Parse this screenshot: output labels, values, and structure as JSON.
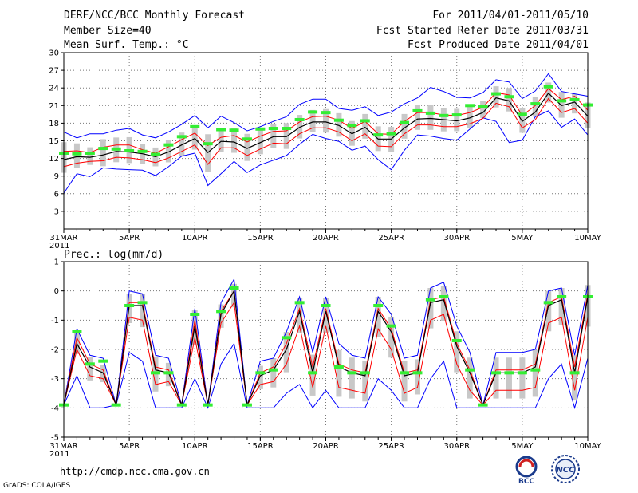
{
  "header": {
    "title": "DERF/NCC/BCC Monthly Forecast",
    "member_size": "Member Size=40",
    "variable": "Mean Surf. Temp.: °C",
    "period": "For 2011/04/01-2011/05/10",
    "started": "Fcst Started Refer Date 2011/03/31",
    "produced": "Fcst Produced Date 2011/04/01"
  },
  "footer": {
    "url": "http://cmdp.ncc.cma.gov.cn",
    "grads": "GrADS: COLA/IGES",
    "logo_bcc": "BCC",
    "logo_ncc": "NCC"
  },
  "colors": {
    "mean": "#000000",
    "spread": "#ff0000",
    "range": "#0000ff",
    "obs": "#33ee33",
    "box": "#c8c8c8"
  },
  "chart_data": [
    {
      "type": "line",
      "title": "Mean Surf. Temp.: °C",
      "x_tick_labels": [
        "31MAR",
        "5APR",
        "10APR",
        "15APR",
        "20APR",
        "25APR",
        "30APR",
        "5MAY",
        "10MAY"
      ],
      "x_tick_days": [
        0,
        5,
        10,
        15,
        20,
        25,
        30,
        35,
        40
      ],
      "x_year_label": "2011",
      "ylim": [
        0,
        30
      ],
      "y_ticks": [
        3,
        6,
        9,
        12,
        15,
        18,
        21,
        24,
        27,
        30
      ],
      "x": [
        0,
        1,
        2,
        3,
        4,
        5,
        6,
        7,
        8,
        9,
        10,
        11,
        12,
        13,
        14,
        15,
        16,
        17,
        18,
        19,
        20,
        21,
        22,
        23,
        24,
        25,
        26,
        27,
        28,
        29,
        30,
        31,
        32,
        33,
        34,
        35,
        36,
        37,
        38,
        39,
        40
      ],
      "series": [
        {
          "name": "ensemble mean",
          "values": [
            11.8,
            12.3,
            12.2,
            12.6,
            13.2,
            13.1,
            12.8,
            12.3,
            13.1,
            14.3,
            15.4,
            13.0,
            14.9,
            14.8,
            13.7,
            14.7,
            15.7,
            15.7,
            17.3,
            18.2,
            18.2,
            17.6,
            16.2,
            17.3,
            15.3,
            15.3,
            17.2,
            18.7,
            18.8,
            18.6,
            18.4,
            18.9,
            19.8,
            22.3,
            21.8,
            18.3,
            19.9,
            23.1,
            21.0,
            21.6,
            19.2
          ]
        },
        {
          "name": "mean + spread",
          "values": [
            13.2,
            13.3,
            13.0,
            13.9,
            14.3,
            14.3,
            13.5,
            12.9,
            14.0,
            15.2,
            16.3,
            14.2,
            15.6,
            15.9,
            14.8,
            15.8,
            16.6,
            16.7,
            18.2,
            19.1,
            19.2,
            18.5,
            17.1,
            18.3,
            16.2,
            16.1,
            18.3,
            19.8,
            19.8,
            19.4,
            19.3,
            19.8,
            20.7,
            23.2,
            22.8,
            19.3,
            21.0,
            23.9,
            22.0,
            22.6,
            20.2
          ]
        },
        {
          "name": "mean - spread",
          "values": [
            10.6,
            11.2,
            11.5,
            11.6,
            12.2,
            12.1,
            11.8,
            11.3,
            12.1,
            13.2,
            14.3,
            11.0,
            13.8,
            13.8,
            12.5,
            13.6,
            14.6,
            14.5,
            16.2,
            17.2,
            17.2,
            16.5,
            15.0,
            16.2,
            14.1,
            14.0,
            16.2,
            17.7,
            17.7,
            17.4,
            17.4,
            17.9,
            18.8,
            21.4,
            20.8,
            17.2,
            18.6,
            22.2,
            19.8,
            20.5,
            18.0
          ]
        },
        {
          "name": "ensemble max",
          "values": [
            16.5,
            15.5,
            16.2,
            16.2,
            16.8,
            17.1,
            16.0,
            15.5,
            16.5,
            17.8,
            19.3,
            17.2,
            19.2,
            18.1,
            16.7,
            17.4,
            18.3,
            19.1,
            21.2,
            22.1,
            22.1,
            20.5,
            20.2,
            20.8,
            19.3,
            19.9,
            21.3,
            22.3,
            24.1,
            23.4,
            22.4,
            22.3,
            23.2,
            25.4,
            25.0,
            22.2,
            23.5,
            26.4,
            23.4,
            23.0,
            22.6
          ]
        },
        {
          "name": "ensemble min",
          "values": [
            6.1,
            9.4,
            8.9,
            10.4,
            10.2,
            10.1,
            10.0,
            9.1,
            10.6,
            12.4,
            12.9,
            7.4,
            9.4,
            11.5,
            9.6,
            10.9,
            11.7,
            12.5,
            14.4,
            16.1,
            15.4,
            14.9,
            13.4,
            14.1,
            11.8,
            10.1,
            13.4,
            16.0,
            15.8,
            15.4,
            15.1,
            17.0,
            18.9,
            18.3,
            14.7,
            15.1,
            19.1,
            20.1,
            17.3,
            18.7,
            16.0
          ]
        },
        {
          "name": "observation",
          "values": [
            12.9,
            12.8,
            12.9,
            13.7,
            13.6,
            13.3,
            13.2,
            12.7,
            14.3,
            15.7,
            17.4,
            14.5,
            16.9,
            16.8,
            15.3,
            17.0,
            17.1,
            17.1,
            18.6,
            19.9,
            19.8,
            18.5,
            17.6,
            18.4,
            16.0,
            16.2,
            18.1,
            20.1,
            19.7,
            19.3,
            19.4,
            21.0,
            20.9,
            23.0,
            22.5,
            19.5,
            21.3,
            24.2,
            21.8,
            22.0,
            21.1
          ]
        }
      ]
    },
    {
      "type": "line",
      "title": "Prec.: log(mm/d)",
      "x_tick_labels": [
        "31MAR",
        "5APR",
        "10APR",
        "15APR",
        "20APR",
        "25APR",
        "30APR",
        "5MAY",
        "10MAY"
      ],
      "x_tick_days": [
        0,
        5,
        10,
        15,
        20,
        25,
        30,
        35,
        40
      ],
      "x_year_label": "2011",
      "ylim": [
        -5,
        1
      ],
      "y_ticks": [
        -5,
        -4,
        -3,
        -2,
        -1,
        0,
        1
      ],
      "x": [
        0,
        1,
        2,
        3,
        4,
        5,
        6,
        7,
        8,
        9,
        10,
        11,
        12,
        13,
        14,
        15,
        16,
        17,
        18,
        19,
        20,
        21,
        22,
        23,
        24,
        25,
        26,
        27,
        28,
        29,
        30,
        31,
        32,
        33,
        34,
        35,
        36,
        37,
        38,
        39,
        40
      ],
      "series": [
        {
          "name": "ensemble mean",
          "values": [
            -3.9,
            -1.8,
            -2.6,
            -2.8,
            -3.9,
            -0.5,
            -0.5,
            -2.7,
            -2.8,
            -3.9,
            -1.2,
            -3.9,
            -0.8,
            0.0,
            -3.9,
            -2.9,
            -2.7,
            -2.0,
            -0.7,
            -2.8,
            -0.7,
            -2.6,
            -2.8,
            -2.9,
            -0.7,
            -1.4,
            -2.9,
            -2.8,
            -0.4,
            -0.3,
            -1.9,
            -2.8,
            -3.9,
            -2.8,
            -2.8,
            -2.8,
            -2.6,
            -0.5,
            -0.3,
            -2.8,
            -0.2
          ]
        },
        {
          "name": "mean + spread",
          "values": [
            -3.9,
            -1.6,
            -2.5,
            -2.7,
            -3.9,
            -0.4,
            -0.4,
            -2.6,
            -2.7,
            -3.9,
            -1.0,
            -3.9,
            -0.7,
            0.0,
            -3.9,
            -2.8,
            -2.6,
            -1.8,
            -0.6,
            -2.6,
            -0.6,
            -2.5,
            -2.7,
            -2.8,
            -0.6,
            -1.3,
            -2.8,
            -2.7,
            -0.3,
            -0.2,
            -1.8,
            -2.7,
            -3.9,
            -2.7,
            -2.7,
            -2.7,
            -2.5,
            -0.4,
            -0.2,
            -2.6,
            -0.1
          ]
        },
        {
          "name": "mean - spread",
          "values": [
            -3.9,
            -2.0,
            -2.9,
            -3.0,
            -3.9,
            -0.9,
            -1.0,
            -3.2,
            -3.1,
            -3.9,
            -1.6,
            -3.9,
            -1.1,
            -0.4,
            -3.9,
            -3.2,
            -3.1,
            -2.5,
            -1.2,
            -3.3,
            -1.2,
            -3.3,
            -3.4,
            -3.5,
            -1.3,
            -2.0,
            -3.5,
            -3.3,
            -1.0,
            -0.8,
            -2.5,
            -3.4,
            -3.9,
            -3.4,
            -3.4,
            -3.4,
            -3.3,
            -1.1,
            -0.9,
            -3.4,
            -0.9
          ]
        },
        {
          "name": "ensemble max",
          "values": [
            -3.9,
            -1.3,
            -2.2,
            -2.3,
            -3.9,
            0.0,
            -0.1,
            -2.2,
            -2.3,
            -3.9,
            -0.6,
            -3.9,
            -0.4,
            0.4,
            -3.9,
            -2.4,
            -2.3,
            -1.4,
            -0.2,
            -2.1,
            -0.2,
            -1.8,
            -2.2,
            -2.3,
            -0.2,
            -0.8,
            -2.3,
            -2.2,
            0.1,
            0.3,
            -1.2,
            -2.1,
            -3.9,
            -2.1,
            -2.1,
            -2.1,
            -2.0,
            0.0,
            0.1,
            -2.2,
            0.2
          ]
        },
        {
          "name": "ensemble min",
          "values": [
            -3.9,
            -2.9,
            -4.0,
            -4.0,
            -3.9,
            -2.1,
            -2.4,
            -4.0,
            -4.0,
            -4.0,
            -3.0,
            -4.0,
            -2.5,
            -1.8,
            -4.0,
            -4.0,
            -4.0,
            -3.5,
            -3.2,
            -4.0,
            -3.4,
            -4.0,
            -4.0,
            -4.0,
            -3.0,
            -3.4,
            -4.0,
            -4.0,
            -3.0,
            -2.4,
            -4.0,
            -4.0,
            -4.0,
            -4.0,
            -4.0,
            -4.0,
            -4.0,
            -3.0,
            -2.5,
            -4.0,
            -2.3
          ]
        },
        {
          "name": "observation",
          "values": [
            -3.9,
            -1.4,
            -2.5,
            -2.4,
            -3.9,
            -0.5,
            -0.4,
            -2.8,
            -2.8,
            -3.9,
            -0.8,
            -3.9,
            -0.7,
            0.1,
            -3.9,
            -2.8,
            -2.7,
            -1.6,
            -0.4,
            -2.8,
            -0.5,
            -2.6,
            -2.8,
            -2.8,
            -0.5,
            -1.2,
            -2.8,
            -2.8,
            -0.3,
            -0.2,
            -1.7,
            -2.7,
            -3.9,
            -2.8,
            -2.8,
            -2.8,
            -2.7,
            -0.4,
            -0.2,
            -2.8,
            -0.2
          ]
        }
      ]
    }
  ]
}
